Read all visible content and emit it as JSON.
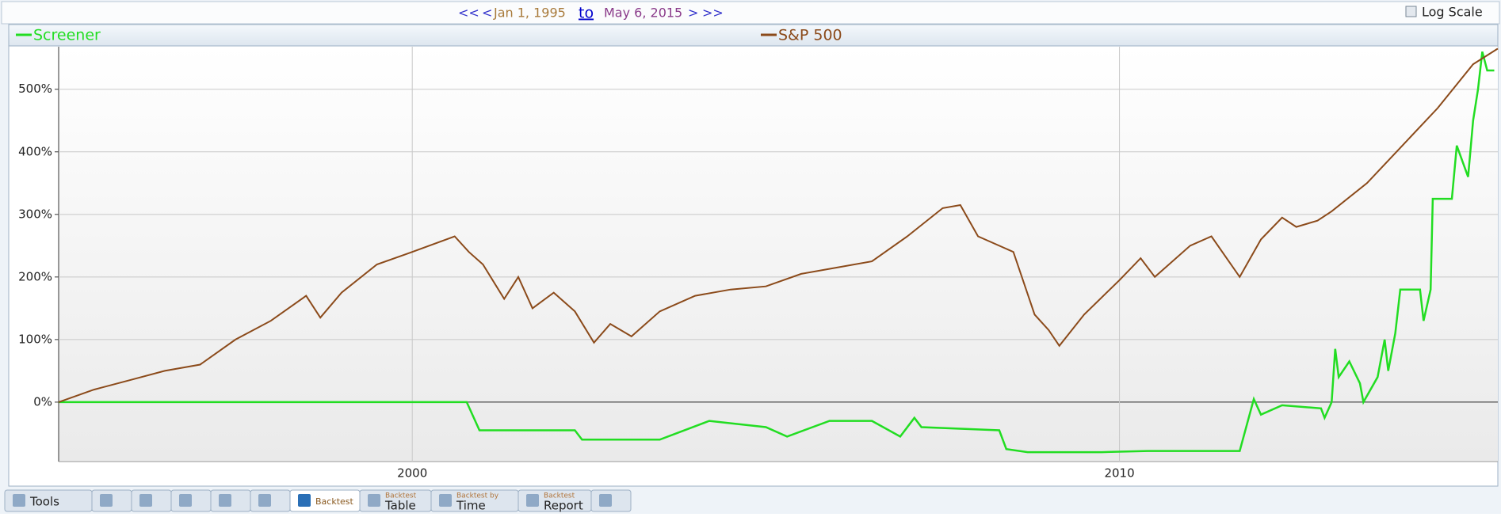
{
  "nav": {
    "first": "<<",
    "prev": "<",
    "start": "Jan 1, 1995",
    "to": "to",
    "end": "May 6, 2015",
    "next": ">",
    "last": ">>",
    "log_scale": "Log Scale"
  },
  "chart_data": {
    "type": "line",
    "log_scale": false,
    "grid": true,
    "xlim": [
      1995,
      2015.35
    ],
    "xticks": [
      2000,
      2010
    ],
    "ylim": [
      -95,
      568
    ],
    "yticks": [
      {
        "value": 0,
        "label": "0%"
      },
      {
        "value": 100,
        "label": "100%"
      },
      {
        "value": 200,
        "label": "200%"
      },
      {
        "value": 300,
        "label": "300%"
      },
      {
        "value": 400,
        "label": "400%"
      },
      {
        "value": 500,
        "label": "500%"
      }
    ],
    "series": [
      {
        "name": "Screener",
        "color": "#22dd22",
        "x": [
          1995,
          2000.77,
          2000.95,
          2002.3,
          2002.4,
          2003.5,
          2004.2,
          2005.0,
          2005.3,
          2005.9,
          2006.5,
          2006.9,
          2007.1,
          2007.2,
          2008.3,
          2008.4,
          2008.7,
          2009.75,
          2010.4,
          2011.7,
          2011.9,
          2012.0,
          2012.3,
          2012.85,
          2012.9,
          2013.0,
          2013.05,
          2013.1,
          2013.25,
          2013.4,
          2013.45,
          2013.65,
          2013.75,
          2013.8,
          2013.9,
          2013.97,
          2014.25,
          2014.3,
          2014.4,
          2014.43,
          2014.7,
          2014.77,
          2014.93,
          2015.0,
          2015.07,
          2015.13,
          2015.2,
          2015.3
        ],
        "values": [
          0,
          0,
          -45,
          -45,
          -60,
          -60,
          -30,
          -40,
          -55,
          -30,
          -30,
          -55,
          -25,
          -40,
          -45,
          -75,
          -80,
          -80,
          -78,
          -78,
          5,
          -20,
          -5,
          -10,
          -25,
          0,
          85,
          40,
          65,
          30,
          0,
          40,
          100,
          50,
          110,
          180,
          180,
          130,
          180,
          325,
          325,
          410,
          360,
          450,
          500,
          560,
          530,
          530
        ]
      },
      {
        "name": "S&P 500",
        "color": "#8b4a1a",
        "x": [
          1995,
          1995.5,
          1996,
          1996.5,
          1997,
          1997.5,
          1998,
          1998.5,
          1998.7,
          1999,
          1999.5,
          2000,
          2000.6,
          2000.8,
          2001,
          2001.3,
          2001.5,
          2001.7,
          2002,
          2002.3,
          2002.57,
          2002.8,
          2003.1,
          2003.5,
          2004,
          2004.5,
          2005,
          2005.5,
          2006,
          2006.5,
          2007,
          2007.5,
          2007.75,
          2008,
          2008.5,
          2008.8,
          2009.0,
          2009.15,
          2009.5,
          2010,
          2010.3,
          2010.5,
          2011,
          2011.3,
          2011.7,
          2012,
          2012.3,
          2012.5,
          2012.8,
          2013,
          2013.5,
          2014,
          2014.5,
          2015,
          2015.35
        ],
        "values": [
          0,
          20,
          35,
          50,
          60,
          100,
          130,
          170,
          135,
          175,
          220,
          240,
          265,
          240,
          220,
          165,
          200,
          150,
          175,
          145,
          95,
          125,
          105,
          145,
          170,
          180,
          185,
          205,
          215,
          225,
          265,
          310,
          315,
          265,
          240,
          140,
          115,
          90,
          140,
          195,
          230,
          200,
          250,
          265,
          200,
          260,
          295,
          280,
          290,
          305,
          350,
          410,
          470,
          540,
          565
        ]
      }
    ]
  },
  "tabs": {
    "tools": "Tools",
    "backtest": "Backtest",
    "table_small": "Backtest",
    "table": "Table",
    "time_small": "Backtest by",
    "time": "Time",
    "report_small": "Backtest",
    "report": "Report"
  }
}
